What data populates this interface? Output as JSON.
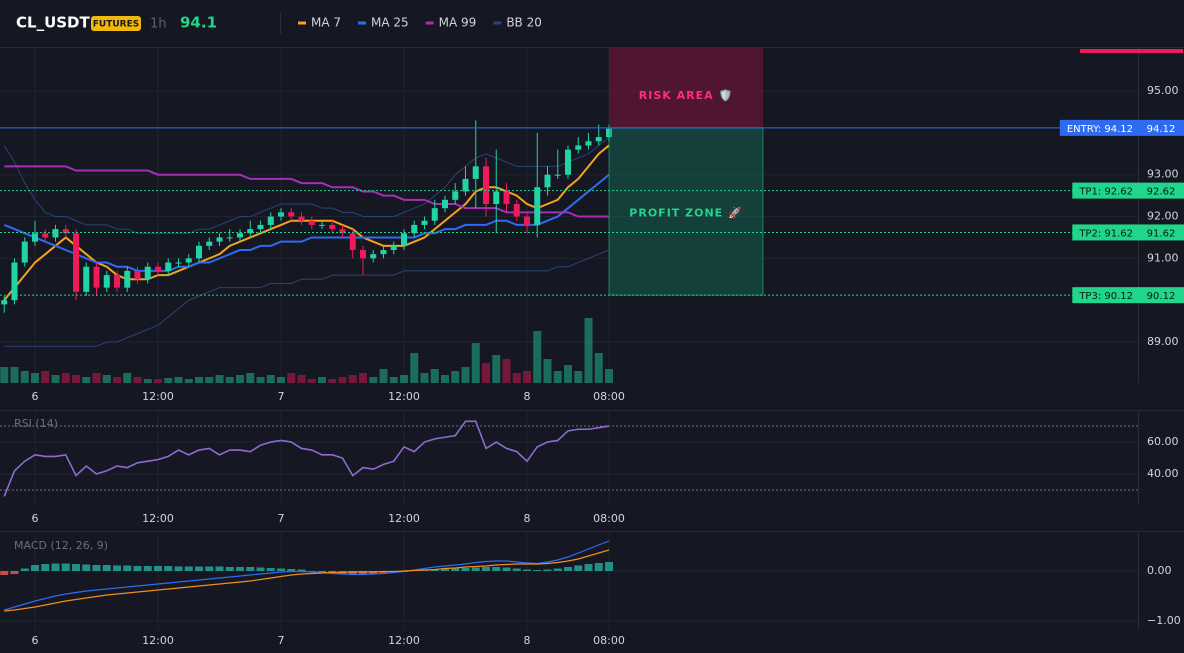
{
  "header": {
    "symbol": "CL_USDT",
    "badge": "FUTURES",
    "interval": "1h",
    "price": 94.1
  },
  "chart_data": [
    {
      "type": "candlestick",
      "categories": [
        null,
        null,
        null,
        "6",
        null,
        null,
        null,
        null,
        null,
        null,
        null,
        null,
        null,
        null,
        null,
        "12:00",
        null,
        null,
        null,
        null,
        null,
        null,
        null,
        null,
        null,
        null,
        null,
        "7",
        null,
        null,
        null,
        null,
        null,
        null,
        null,
        null,
        null,
        null,
        null,
        "12:00",
        null,
        null,
        null,
        null,
        null,
        null,
        null,
        null,
        null,
        null,
        null,
        "8",
        null,
        null,
        null,
        null,
        null,
        null,
        null,
        "08:00"
      ],
      "open": [
        89.9,
        90.0,
        90.9,
        91.4,
        91.6,
        91.5,
        91.7,
        91.6,
        90.2,
        90.8,
        90.3,
        90.6,
        90.3,
        90.7,
        90.5,
        90.8,
        90.7,
        90.9,
        90.9,
        91.0,
        91.3,
        91.4,
        91.5,
        91.5,
        91.6,
        91.7,
        91.8,
        92.0,
        92.1,
        92.0,
        91.9,
        91.8,
        91.8,
        91.7,
        91.6,
        91.2,
        91.0,
        91.1,
        91.2,
        91.3,
        91.6,
        91.8,
        91.9,
        92.2,
        92.4,
        92.6,
        92.9,
        93.2,
        92.3,
        92.6,
        92.3,
        92.0,
        91.8,
        92.7,
        93.0,
        93.0,
        93.6,
        93.7,
        93.8,
        93.9
      ],
      "high": [
        90.1,
        91.0,
        91.5,
        91.9,
        91.7,
        91.8,
        91.8,
        91.7,
        90.9,
        90.9,
        90.7,
        90.7,
        90.8,
        90.8,
        90.9,
        90.9,
        91.0,
        91.0,
        91.1,
        91.4,
        91.5,
        91.6,
        91.7,
        91.7,
        91.9,
        91.9,
        92.1,
        92.2,
        92.2,
        92.1,
        92.0,
        91.9,
        91.9,
        91.8,
        91.7,
        91.3,
        91.2,
        91.3,
        91.4,
        91.7,
        91.9,
        92.0,
        92.4,
        92.5,
        92.8,
        93.2,
        94.3,
        93.4,
        93.6,
        92.8,
        92.4,
        92.1,
        94.0,
        93.2,
        93.6,
        93.7,
        93.9,
        94.0,
        94.2,
        94.2
      ],
      "low": [
        89.7,
        89.9,
        90.8,
        91.3,
        91.4,
        91.4,
        91.5,
        90.0,
        90.1,
        90.1,
        90.2,
        90.2,
        90.2,
        90.4,
        90.4,
        90.6,
        90.6,
        90.8,
        90.8,
        90.9,
        91.2,
        91.3,
        91.4,
        91.4,
        91.5,
        91.6,
        91.7,
        91.9,
        91.9,
        91.8,
        91.7,
        91.7,
        91.6,
        91.5,
        91.0,
        90.6,
        90.9,
        91.0,
        91.1,
        91.2,
        91.5,
        91.7,
        91.8,
        92.1,
        92.3,
        92.5,
        92.2,
        92.0,
        91.6,
        92.1,
        91.9,
        91.6,
        91.5,
        92.5,
        92.9,
        92.9,
        93.5,
        93.6,
        93.7,
        93.8
      ],
      "close": [
        90.0,
        90.9,
        91.4,
        91.6,
        91.5,
        91.7,
        91.6,
        90.2,
        90.8,
        90.3,
        90.6,
        90.3,
        90.7,
        90.5,
        90.8,
        90.7,
        90.9,
        90.9,
        91.0,
        91.3,
        91.4,
        91.5,
        91.5,
        91.6,
        91.7,
        91.8,
        92.0,
        92.1,
        92.0,
        91.9,
        91.8,
        91.8,
        91.7,
        91.6,
        91.2,
        91.0,
        91.1,
        91.2,
        91.3,
        91.6,
        91.8,
        91.9,
        92.2,
        92.4,
        92.6,
        92.9,
        93.2,
        92.3,
        92.6,
        92.3,
        92.0,
        91.8,
        92.7,
        93.0,
        93.0,
        93.6,
        93.7,
        93.8,
        93.9,
        94.1
      ],
      "volume": [
        16,
        16,
        12,
        10,
        12,
        8,
        10,
        8,
        6,
        10,
        8,
        6,
        10,
        6,
        4,
        4,
        5,
        6,
        4,
        6,
        6,
        8,
        6,
        8,
        10,
        6,
        8,
        6,
        10,
        8,
        4,
        6,
        4,
        6,
        8,
        10,
        6,
        14,
        6,
        8,
        30,
        10,
        14,
        8,
        12,
        16,
        40,
        20,
        28,
        24,
        10,
        12,
        52,
        24,
        12,
        18,
        12,
        65,
        30,
        14
      ],
      "volume_ylim": [
        0,
        100
      ],
      "up_color": "#22d3a6",
      "down_color": "#f0195a",
      "series": [
        {
          "name": "MA 7",
          "color": "#f7a21b",
          "values": [
            90.0,
            90.3,
            90.6,
            90.9,
            91.1,
            91.3,
            91.5,
            91.3,
            91.1,
            90.9,
            90.8,
            90.6,
            90.5,
            90.5,
            90.5,
            90.6,
            90.6,
            90.7,
            90.8,
            90.9,
            91.0,
            91.1,
            91.3,
            91.4,
            91.5,
            91.6,
            91.7,
            91.8,
            91.9,
            91.9,
            91.9,
            91.9,
            91.9,
            91.8,
            91.7,
            91.5,
            91.4,
            91.3,
            91.3,
            91.3,
            91.4,
            91.5,
            91.7,
            91.9,
            92.1,
            92.3,
            92.6,
            92.7,
            92.7,
            92.6,
            92.5,
            92.3,
            92.2,
            92.3,
            92.4,
            92.7,
            92.9,
            93.2,
            93.5,
            93.7
          ]
        },
        {
          "name": "MA 25",
          "color": "#2f6bf0",
          "values": [
            91.8,
            91.7,
            91.6,
            91.5,
            91.4,
            91.3,
            91.2,
            91.1,
            91.0,
            90.9,
            90.9,
            90.8,
            90.8,
            90.7,
            90.7,
            90.7,
            90.7,
            90.8,
            90.8,
            90.9,
            90.9,
            91.0,
            91.1,
            91.2,
            91.2,
            91.3,
            91.3,
            91.4,
            91.4,
            91.4,
            91.5,
            91.5,
            91.5,
            91.5,
            91.5,
            91.5,
            91.5,
            91.5,
            91.5,
            91.5,
            91.5,
            91.6,
            91.6,
            91.7,
            91.7,
            91.8,
            91.8,
            91.8,
            91.9,
            91.9,
            91.8,
            91.8,
            91.8,
            91.9,
            92.0,
            92.2,
            92.4,
            92.6,
            92.8,
            93.0
          ]
        },
        {
          "name": "MA 99",
          "color": "#a62fb8",
          "values": [
            93.2,
            93.2,
            93.2,
            93.2,
            93.2,
            93.2,
            93.2,
            93.1,
            93.1,
            93.1,
            93.1,
            93.1,
            93.1,
            93.1,
            93.1,
            93.0,
            93.0,
            93.0,
            93.0,
            93.0,
            93.0,
            93.0,
            93.0,
            93.0,
            92.9,
            92.9,
            92.9,
            92.9,
            92.9,
            92.8,
            92.8,
            92.8,
            92.7,
            92.7,
            92.7,
            92.6,
            92.6,
            92.5,
            92.5,
            92.4,
            92.4,
            92.4,
            92.3,
            92.3,
            92.3,
            92.2,
            92.2,
            92.2,
            92.2,
            92.1,
            92.1,
            92.1,
            92.1,
            92.1,
            92.1,
            92.1,
            92.0,
            92.0,
            92.0,
            92.0
          ]
        },
        {
          "name": "BB 20",
          "color": "#2a4378",
          "upper": [
            93.7,
            93.3,
            92.8,
            92.4,
            92.1,
            92.0,
            92.0,
            91.9,
            91.8,
            91.8,
            91.8,
            91.7,
            91.7,
            91.6,
            91.6,
            91.6,
            91.6,
            91.6,
            91.6,
            91.7,
            91.7,
            91.8,
            91.9,
            92.0,
            92.0,
            92.1,
            92.2,
            92.3,
            92.3,
            92.3,
            92.3,
            92.2,
            92.2,
            92.1,
            92.1,
            92.0,
            92.0,
            92.0,
            92.0,
            92.1,
            92.2,
            92.3,
            92.5,
            92.7,
            93.0,
            93.2,
            93.4,
            93.5,
            93.4,
            93.3,
            93.2,
            93.2,
            93.2,
            93.2,
            93.2,
            93.3,
            93.4,
            93.5,
            93.7,
            93.9
          ],
          "lower": [
            88.9,
            88.9,
            88.9,
            88.9,
            88.9,
            88.9,
            88.9,
            88.9,
            88.9,
            88.9,
            89.0,
            89.0,
            89.1,
            89.2,
            89.3,
            89.4,
            89.6,
            89.8,
            90.0,
            90.1,
            90.2,
            90.3,
            90.3,
            90.3,
            90.3,
            90.3,
            90.4,
            90.4,
            90.4,
            90.5,
            90.5,
            90.5,
            90.6,
            90.6,
            90.6,
            90.6,
            90.6,
            90.6,
            90.6,
            90.7,
            90.7,
            90.7,
            90.7,
            90.7,
            90.7,
            90.7,
            90.7,
            90.7,
            90.7,
            90.7,
            90.7,
            90.7,
            90.7,
            90.7,
            90.8,
            90.8,
            90.9,
            91.0,
            91.1,
            91.2
          ]
        }
      ],
      "ylim": [
        88.02,
        96.03
      ],
      "yticks": [
        {
          "value": 89,
          "label": "89.00"
        },
        {
          "value": 91,
          "label": "91.00"
        },
        {
          "value": 92,
          "label": "92.00"
        },
        {
          "value": 93,
          "label": "93.00"
        },
        {
          "value": 95,
          "label": "95.00"
        }
      ],
      "levels": [
        {
          "label": "ENTRY: 94.12",
          "value": 94.12,
          "color": "#2f6bf0",
          "dashed": false
        },
        {
          "label": "TP1: 92.62",
          "value": 92.62,
          "color": "#1fd68a",
          "dashed": true
        },
        {
          "label": "TP2: 91.62",
          "value": 91.62,
          "color": "#1fd68a",
          "dashed": true
        },
        {
          "label": "TP3: 90.12",
          "value": 90.12,
          "color": "#1fd68a",
          "dashed": true
        }
      ],
      "risk_label": "RISK AREA 🛡️",
      "profit_label": "PROFIT ZONE 🚀"
    },
    {
      "type": "line",
      "title": "RSI (14)",
      "color": "#8e6bd1",
      "values": [
        26,
        42,
        48,
        52,
        51,
        51,
        52,
        39,
        45,
        40,
        42,
        45,
        44,
        47,
        48,
        49,
        51,
        55,
        52,
        55,
        56,
        52,
        55,
        55,
        54,
        58,
        60,
        61,
        60,
        56,
        55,
        52,
        52,
        50,
        39,
        44,
        43,
        46,
        48,
        57,
        54,
        60,
        62,
        63,
        64,
        73,
        73,
        56,
        60,
        56,
        54,
        48,
        57,
        60,
        61,
        67,
        68,
        68,
        69,
        70
      ],
      "ylim": [
        20.6,
        78.8
      ],
      "yticks": [
        {
          "value": 40,
          "label": "40.00"
        },
        {
          "value": 60,
          "label": "60.00"
        }
      ],
      "levels": [
        70,
        30
      ]
    },
    {
      "type": "macd",
      "title": "MACD (12, 26, 9)",
      "lines": [
        {
          "color": "#2f6bf0",
          "values": [
            -0.78,
            -0.72,
            -0.66,
            -0.6,
            -0.55,
            -0.5,
            -0.46,
            -0.43,
            -0.4,
            -0.38,
            -0.36,
            -0.34,
            -0.32,
            -0.3,
            -0.28,
            -0.26,
            -0.24,
            -0.22,
            -0.2,
            -0.18,
            -0.16,
            -0.14,
            -0.12,
            -0.1,
            -0.08,
            -0.06,
            -0.04,
            -0.02,
            -0.01,
            -0.01,
            -0.02,
            -0.03,
            -0.05,
            -0.06,
            -0.07,
            -0.07,
            -0.06,
            -0.05,
            -0.03,
            -0.01,
            0.02,
            0.05,
            0.08,
            0.1,
            0.12,
            0.14,
            0.17,
            0.19,
            0.2,
            0.2,
            0.18,
            0.16,
            0.15,
            0.18,
            0.22,
            0.28,
            0.36,
            0.44,
            0.52,
            0.6
          ]
        },
        {
          "color": "#f28c1b",
          "values": [
            -0.8,
            -0.78,
            -0.75,
            -0.72,
            -0.68,
            -0.64,
            -0.6,
            -0.57,
            -0.54,
            -0.51,
            -0.48,
            -0.46,
            -0.44,
            -0.42,
            -0.4,
            -0.38,
            -0.36,
            -0.34,
            -0.32,
            -0.3,
            -0.28,
            -0.26,
            -0.24,
            -0.22,
            -0.2,
            -0.17,
            -0.14,
            -0.11,
            -0.08,
            -0.06,
            -0.05,
            -0.04,
            -0.03,
            -0.03,
            -0.02,
            -0.02,
            -0.02,
            -0.01,
            -0.01,
            0,
            0.01,
            0.02,
            0.03,
            0.05,
            0.06,
            0.08,
            0.09,
            0.1,
            0.12,
            0.13,
            0.14,
            0.14,
            0.14,
            0.15,
            0.17,
            0.2,
            0.24,
            0.3,
            0.36,
            0.42
          ]
        }
      ],
      "histogram": [
        -0.08,
        -0.06,
        0.05,
        0.12,
        0.14,
        0.15,
        0.15,
        0.14,
        0.13,
        0.12,
        0.12,
        0.11,
        0.11,
        0.1,
        0.1,
        0.1,
        0.1,
        0.09,
        0.09,
        0.09,
        0.09,
        0.09,
        0.08,
        0.08,
        0.08,
        0.07,
        0.06,
        0.05,
        0.04,
        0.03,
        -0.02,
        -0.03,
        -0.04,
        -0.05,
        -0.06,
        -0.06,
        -0.05,
        -0.04,
        -0.03,
        -0.02,
        0.02,
        0.03,
        0.04,
        0.05,
        0.06,
        0.06,
        0.07,
        0.08,
        0.08,
        0.07,
        0.05,
        0.03,
        0.02,
        0.03,
        0.05,
        0.08,
        0.11,
        0.14,
        0.16,
        0.18
      ],
      "up_color": "#26a69a",
      "down_color": "#ef5350",
      "ylim": [
        -1.18,
        0.76
      ],
      "yticks": [
        {
          "value": -1,
          "label": "−1.00"
        },
        {
          "value": 0,
          "label": "0.00"
        }
      ]
    }
  ]
}
